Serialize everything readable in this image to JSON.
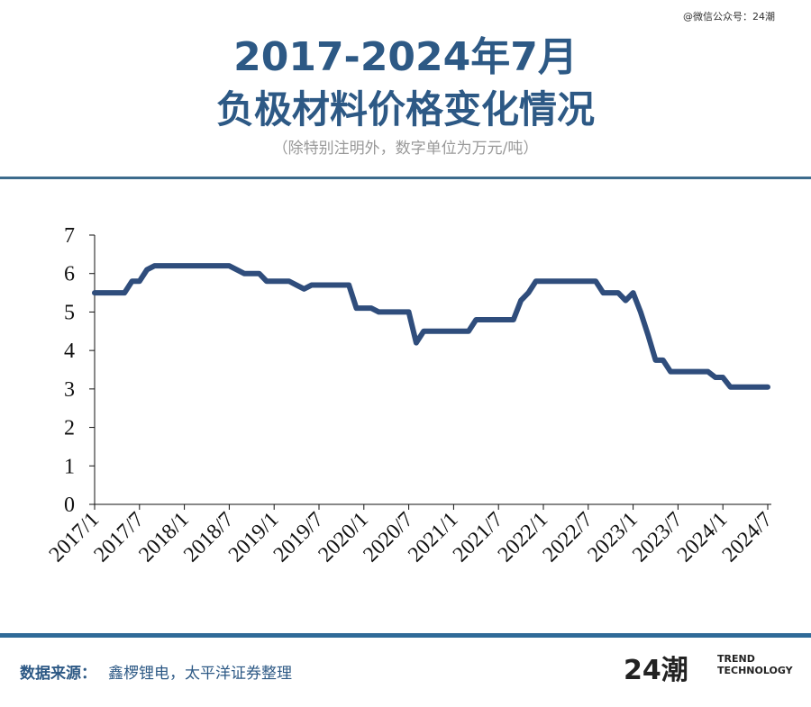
{
  "watermark": "@微信公众号：24潮",
  "subtitle": "（除特别注明外，数字单位为万元/吨）",
  "footer": {
    "source_label": "数据来源：",
    "source": "鑫椤锂电，太平洋证券整理",
    "logo": "24潮",
    "logo_line1": "TREND",
    "logo_line2": "TECHNOLOGY"
  },
  "chart_data": {
    "type": "line",
    "title": [
      "2017-2024年7月",
      "负极材料价格变化情况"
    ],
    "categories": [
      "2017/1",
      null,
      null,
      null,
      null,
      null,
      "2017/7",
      null,
      null,
      null,
      null,
      null,
      "2018/1",
      null,
      null,
      null,
      null,
      null,
      "2018/7",
      null,
      null,
      null,
      null,
      null,
      "2019/1",
      null,
      null,
      null,
      null,
      null,
      "2019/7",
      null,
      null,
      null,
      null,
      null,
      "2020/1",
      null,
      null,
      null,
      null,
      null,
      "2020/7",
      null,
      null,
      null,
      null,
      null,
      "2021/1",
      null,
      null,
      null,
      null,
      null,
      "2021/7",
      null,
      null,
      null,
      null,
      null,
      "2022/1",
      null,
      null,
      null,
      null,
      null,
      "2022/7",
      null,
      null,
      null,
      null,
      null,
      "2023/1",
      null,
      null,
      null,
      null,
      null,
      "2023/7",
      null,
      null,
      null,
      null,
      null,
      "2024/1",
      null,
      null,
      null,
      null,
      null,
      "2024/7"
    ],
    "series": [
      {
        "name": null,
        "color": "#2f4d7c",
        "values": [
          5.5,
          5.5,
          5.5,
          5.5,
          5.5,
          5.8,
          5.8,
          6.1,
          6.2,
          6.2,
          6.2,
          6.2,
          6.2,
          6.2,
          6.2,
          6.2,
          6.2,
          6.2,
          6.2,
          6.1,
          6.0,
          6.0,
          6.0,
          5.8,
          5.8,
          5.8,
          5.8,
          5.7,
          5.6,
          5.7,
          5.7,
          5.7,
          5.7,
          5.7,
          5.7,
          5.1,
          5.1,
          5.1,
          5.0,
          5.0,
          5.0,
          5.0,
          5.0,
          4.2,
          4.5,
          4.5,
          4.5,
          4.5,
          4.5,
          4.5,
          4.5,
          4.8,
          4.8,
          4.8,
          4.8,
          4.8,
          4.8,
          5.3,
          5.5,
          5.8,
          5.8,
          5.8,
          5.8,
          5.8,
          5.8,
          5.8,
          5.8,
          5.8,
          5.5,
          5.5,
          5.5,
          5.3,
          5.5,
          5.0,
          4.4,
          3.75,
          3.75,
          3.45,
          3.45,
          3.45,
          3.45,
          3.45,
          3.45,
          3.3,
          3.3,
          3.05,
          3.05,
          3.05,
          3.05,
          3.05,
          3.05
        ]
      }
    ],
    "ylim": [
      0,
      7
    ],
    "yticks": [
      0,
      1,
      2,
      3,
      4,
      5,
      6,
      7
    ],
    "grid": false
  }
}
